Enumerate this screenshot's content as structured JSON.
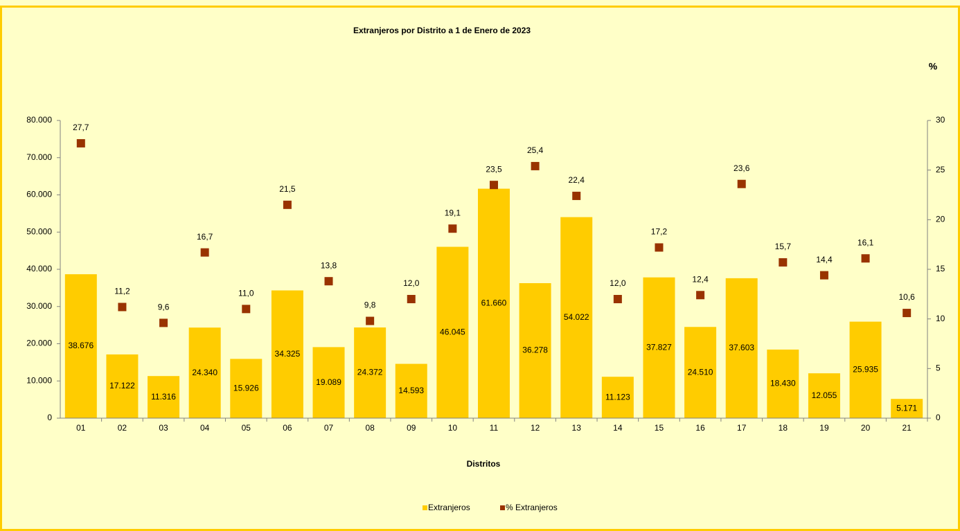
{
  "chart_data": {
    "type": "bar",
    "title": "Extranjeros por Distrito a 1 de Enero de 2023",
    "x_label": "Distritos",
    "y2_label": "%",
    "categories": [
      "01",
      "02",
      "03",
      "04",
      "05",
      "06",
      "07",
      "08",
      "09",
      "10",
      "11",
      "12",
      "13",
      "14",
      "15",
      "16",
      "17",
      "18",
      "19",
      "20",
      "21"
    ],
    "series": [
      {
        "name": "Extranjeros",
        "type": "bar",
        "color": "#ffcc00",
        "values": [
          38676,
          17122,
          11316,
          24340,
          15926,
          34325,
          19089,
          24372,
          14593,
          46045,
          61660,
          36278,
          54022,
          11123,
          37827,
          24510,
          37603,
          18430,
          12055,
          25935,
          5171
        ],
        "value_labels": [
          "38.676",
          "17.122",
          "11.316",
          "24.340",
          "15.926",
          "34.325",
          "19.089",
          "24.372",
          "14.593",
          "46.045",
          "61.660",
          "36.278",
          "54.022",
          "11.123",
          "37.827",
          "24.510",
          "37.603",
          "18.430",
          "12.055",
          "25.935",
          "5.171"
        ]
      },
      {
        "name": "% Extranjeros",
        "type": "scatter",
        "axis": "y2",
        "color": "#993300",
        "values": [
          27.7,
          11.2,
          9.6,
          16.7,
          11.0,
          21.5,
          13.8,
          9.8,
          12.0,
          19.1,
          23.5,
          25.4,
          22.4,
          12.0,
          17.2,
          12.4,
          23.6,
          15.7,
          14.4,
          16.1,
          10.6
        ],
        "value_labels": [
          "27,7",
          "11,2",
          "9,6",
          "16,7",
          "11,0",
          "21,5",
          "13,8",
          "9,8",
          "12,0",
          "19,1",
          "23,5",
          "25,4",
          "22,4",
          "12,0",
          "17,2",
          "12,4",
          "23,6",
          "15,7",
          "14,4",
          "16,1",
          "10,6"
        ]
      }
    ],
    "ylim": [
      0,
      80000
    ],
    "yticks": [
      0,
      {
        "value": 10000,
        "label": "10.000"
      },
      {
        "value": 20000,
        "label": "20.000"
      },
      {
        "value": 30000,
        "label": "30.000"
      },
      {
        "value": 40000,
        "label": "40.000"
      },
      {
        "value": 50000,
        "label": "50.000"
      },
      {
        "value": 60000,
        "label": "60.000"
      },
      {
        "value": 70000,
        "label": "70.000"
      },
      {
        "value": 80000,
        "label": "80.000"
      }
    ],
    "y2lim": [
      0,
      30
    ],
    "y2ticks": [
      0,
      5,
      10,
      15,
      20,
      25,
      30
    ],
    "legend": "bottom"
  }
}
